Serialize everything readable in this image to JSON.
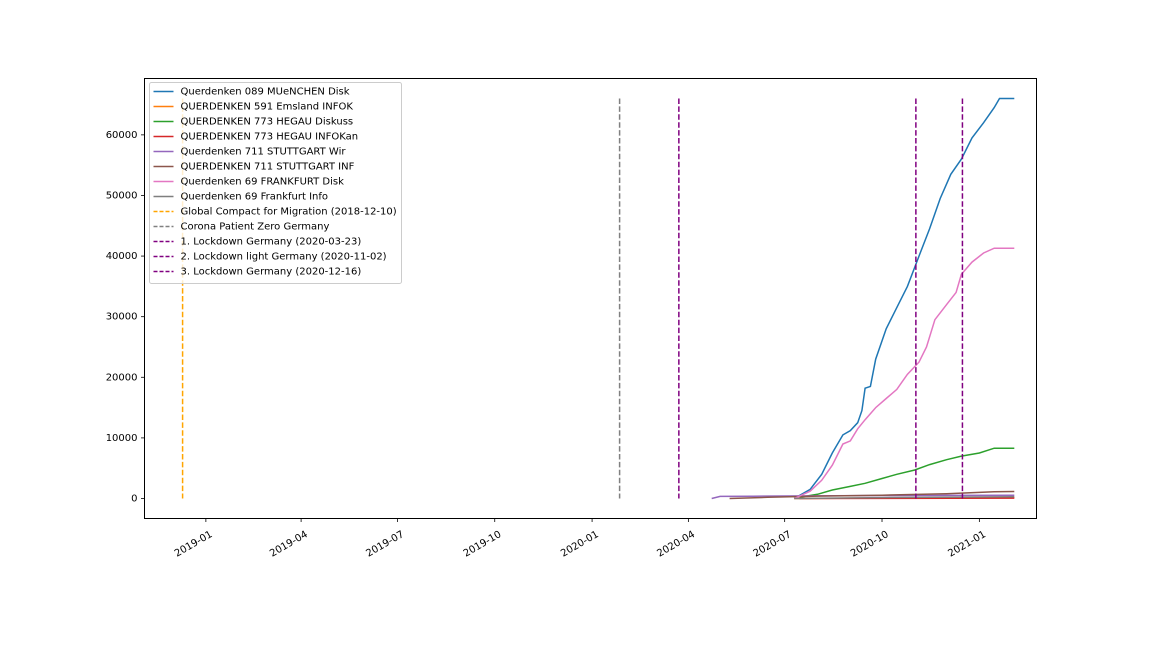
{
  "chart_data": {
    "type": "line",
    "title": "",
    "xlabel": "",
    "ylabel": "",
    "xlim": [
      "2018-11-04",
      "2021-02-24"
    ],
    "ylim": [
      -3300,
      69300
    ],
    "grid": false,
    "legend_position": "top-left",
    "x_ticks": [
      "2019-01",
      "2019-04",
      "2019-07",
      "2019-10",
      "2020-01",
      "2020-04",
      "2020-07",
      "2020-10",
      "2021-01"
    ],
    "y_ticks": [
      0,
      10000,
      20000,
      30000,
      40000,
      50000,
      60000
    ],
    "series": [
      {
        "name": "Querdenken 089  MUeNCHEN  Disk",
        "color": "#1f77b4",
        "points": [
          [
            "2020-07-10",
            0
          ],
          [
            "2020-07-25",
            1500
          ],
          [
            "2020-08-05",
            4000
          ],
          [
            "2020-08-15",
            7500
          ],
          [
            "2020-08-25",
            10500
          ],
          [
            "2020-09-01",
            11200
          ],
          [
            "2020-09-08",
            12500
          ],
          [
            "2020-09-12",
            14500
          ],
          [
            "2020-09-15",
            18200
          ],
          [
            "2020-09-20",
            18500
          ],
          [
            "2020-09-25",
            23000
          ],
          [
            "2020-10-05",
            28000
          ],
          [
            "2020-10-15",
            31500
          ],
          [
            "2020-10-25",
            35000
          ],
          [
            "2020-11-05",
            40000
          ],
          [
            "2020-11-15",
            44500
          ],
          [
            "2020-11-25",
            49500
          ],
          [
            "2020-12-05",
            53500
          ],
          [
            "2020-12-15",
            56000
          ],
          [
            "2020-12-25",
            59500
          ],
          [
            "2021-01-05",
            62000
          ],
          [
            "2021-01-15",
            64500
          ],
          [
            "2021-01-20",
            66000
          ],
          [
            "2021-02-03",
            66000
          ]
        ]
      },
      {
        "name": "QUERDENKEN 591  Emsland  INFOK",
        "color": "#ff7f0e",
        "points": [
          [
            "2020-07-10",
            0
          ],
          [
            "2020-10-01",
            80
          ],
          [
            "2021-02-03",
            150
          ]
        ]
      },
      {
        "name": "QUERDENKEN 773  HEGAU  Diskuss",
        "color": "#2ca02c",
        "points": [
          [
            "2020-07-15",
            200
          ],
          [
            "2020-08-01",
            700
          ],
          [
            "2020-08-15",
            1400
          ],
          [
            "2020-09-01",
            2000
          ],
          [
            "2020-09-15",
            2500
          ],
          [
            "2020-10-01",
            3300
          ],
          [
            "2020-10-15",
            4000
          ],
          [
            "2020-11-01",
            4700
          ],
          [
            "2020-11-15",
            5600
          ],
          [
            "2020-12-01",
            6400
          ],
          [
            "2020-12-15",
            7000
          ],
          [
            "2021-01-01",
            7500
          ],
          [
            "2021-01-15",
            8300
          ],
          [
            "2021-02-03",
            8300
          ]
        ]
      },
      {
        "name": "QUERDENKEN 773  HEGAU  INFOKan",
        "color": "#d62728",
        "points": [
          [
            "2020-07-15",
            0
          ],
          [
            "2021-02-03",
            60
          ]
        ]
      },
      {
        "name": "Querdenken 711  STUTTGART  Wir",
        "color": "#9467bd",
        "points": [
          [
            "2020-04-23",
            0
          ],
          [
            "2020-05-01",
            350
          ],
          [
            "2020-06-01",
            380
          ],
          [
            "2020-07-01",
            420
          ],
          [
            "2020-10-01",
            500
          ],
          [
            "2021-02-03",
            550
          ]
        ]
      },
      {
        "name": "QUERDENKEN 711  STUTTGART  INF",
        "color": "#8c564b",
        "points": [
          [
            "2020-05-10",
            0
          ],
          [
            "2020-06-15",
            200
          ],
          [
            "2020-08-01",
            400
          ],
          [
            "2020-10-01",
            550
          ],
          [
            "2020-12-01",
            800
          ],
          [
            "2021-01-15",
            1100
          ],
          [
            "2021-02-03",
            1150
          ]
        ]
      },
      {
        "name": "Querdenken 69  FRANKFURT  Disk",
        "color": "#e377c2",
        "points": [
          [
            "2020-07-10",
            0
          ],
          [
            "2020-07-25",
            1200
          ],
          [
            "2020-08-05",
            3000
          ],
          [
            "2020-08-15",
            5500
          ],
          [
            "2020-08-25",
            9000
          ],
          [
            "2020-09-01",
            9500
          ],
          [
            "2020-09-08",
            11500
          ],
          [
            "2020-09-15",
            13000
          ],
          [
            "2020-09-25",
            15000
          ],
          [
            "2020-10-05",
            16500
          ],
          [
            "2020-10-15",
            18000
          ],
          [
            "2020-10-25",
            20500
          ],
          [
            "2020-11-05",
            22500
          ],
          [
            "2020-11-12",
            25000
          ],
          [
            "2020-11-20",
            29500
          ],
          [
            "2020-12-01",
            32000
          ],
          [
            "2020-12-10",
            34000
          ],
          [
            "2020-12-15",
            37000
          ],
          [
            "2020-12-25",
            39000
          ],
          [
            "2021-01-05",
            40500
          ],
          [
            "2021-01-15",
            41300
          ],
          [
            "2021-02-03",
            41300
          ]
        ]
      },
      {
        "name": "Querdenken 69 Frankfurt  Info",
        "color": "#7f7f7f",
        "points": [
          [
            "2020-07-10",
            0
          ],
          [
            "2020-10-01",
            150
          ],
          [
            "2021-02-03",
            300
          ]
        ]
      }
    ],
    "events": [
      {
        "name": "Global Compact for Migration (2018-12-10)",
        "date": "2018-12-10",
        "color": "#ffa500"
      },
      {
        "name": "Corona Patient Zero Germany",
        "date": "2020-01-27",
        "color": "#808080"
      },
      {
        "name": "1. Lockdown Germany (2020-03-23)",
        "date": "2020-03-23",
        "color": "#800080"
      },
      {
        "name": "2. Lockdown light Germany (2020-11-02)",
        "date": "2020-11-02",
        "color": "#800080"
      },
      {
        "name": "3. Lockdown Germany (2020-12-16)",
        "date": "2020-12-16",
        "color": "#800080"
      }
    ],
    "event_line_top": 66000,
    "event_line_bottom": 0
  }
}
